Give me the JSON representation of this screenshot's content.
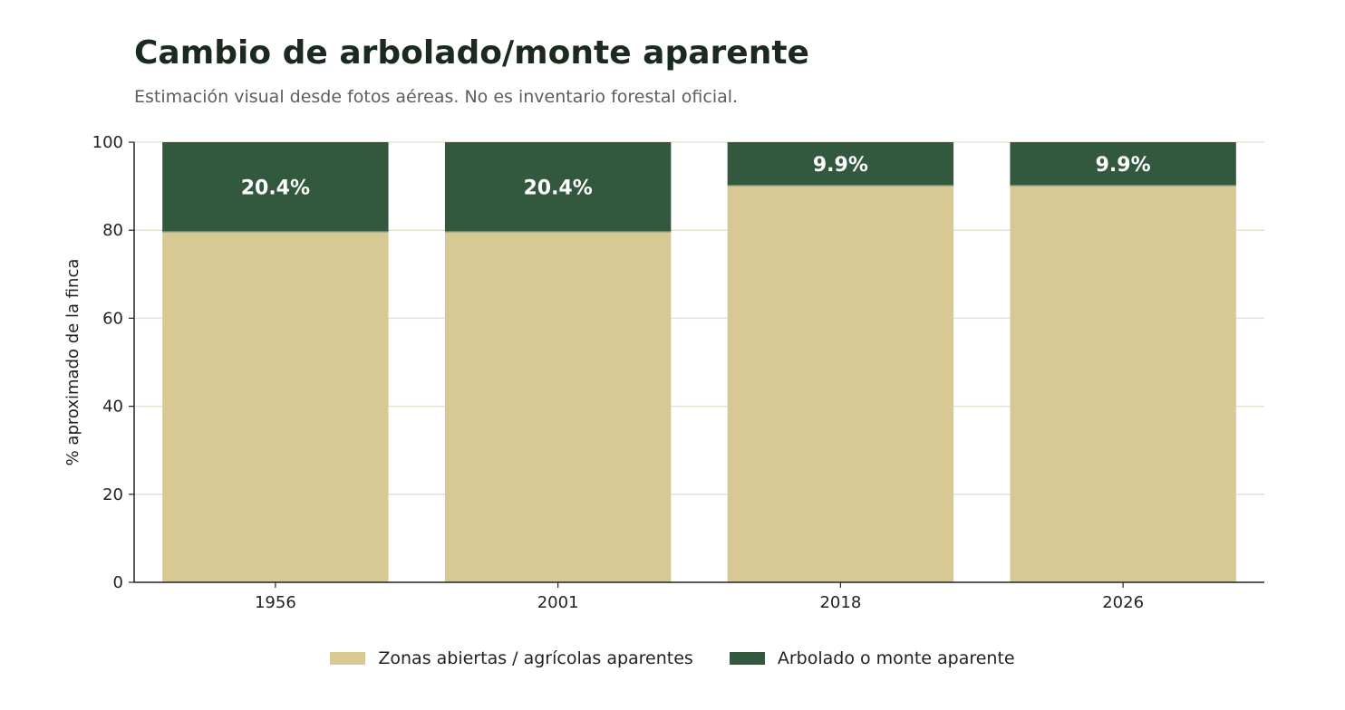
{
  "header": {
    "title": "Cambio de arbolado/monte aparente",
    "subtitle": "Estimación visual desde fotos aéreas. No es inventario forestal oficial."
  },
  "colors": {
    "open": "#d8c994",
    "forest": "#32583e",
    "grid": "#e6e2d3",
    "axis": "#222222"
  },
  "chart_data": {
    "type": "bar",
    "stacked": true,
    "categories": [
      "1956",
      "2001",
      "2018",
      "2026"
    ],
    "series": [
      {
        "name": "Zonas abiertas / agrícolas aparentes",
        "values": [
          79.6,
          79.6,
          90.1,
          90.1
        ]
      },
      {
        "name": "Arbolado o monte aparente",
        "values": [
          20.4,
          20.4,
          9.9,
          9.9
        ]
      }
    ],
    "data_labels": [
      "20.4%",
      "20.4%",
      "9.9%",
      "9.9%"
    ],
    "xlabel": "",
    "ylabel": "% aproximado de la finca",
    "ylim": [
      0,
      100
    ],
    "yticks": [
      0,
      20,
      40,
      60,
      80,
      100
    ],
    "grid": true,
    "legend_position": "bottom-center"
  }
}
